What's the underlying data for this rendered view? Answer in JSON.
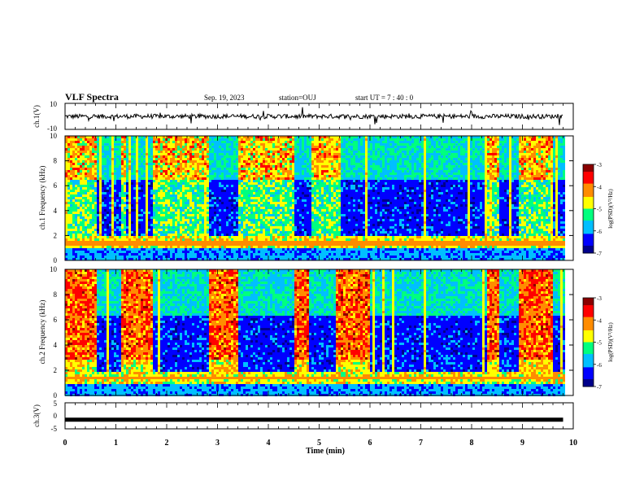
{
  "header": {
    "title": "VLF Spectra",
    "date": "Sep. 19, 2023",
    "station": "station=OUJ",
    "start_ut": "start UT =   7 : 40 : 0"
  },
  "colorbar": {
    "label": "log(PSD)(V²/Hz)",
    "ticks": [
      "-3",
      "-4",
      "-5",
      "-6",
      "-7"
    ],
    "colors": [
      "#8b0000",
      "#ff0000",
      "#ff8c00",
      "#ffff00",
      "#00ff7f",
      "#00bfff",
      "#0000ff",
      "#00008b"
    ]
  },
  "chart_data": [
    {
      "type": "line",
      "panel": "ch.1(V)",
      "ylabel": "ch.1(V)",
      "ylim": [
        -10,
        10
      ],
      "yticks": [
        "10",
        "-10"
      ],
      "description_series": "waveform",
      "baseline": 0
    },
    {
      "type": "heatmap",
      "panel": "ch.1 spectrogram",
      "ylabel": "ch.1 Frequency (kHz)",
      "ylim": [
        0,
        10
      ],
      "yticks": [
        "0",
        "2",
        "4",
        "6",
        "8",
        "10"
      ],
      "xlim": [
        0,
        10
      ],
      "zlim": [
        -7,
        -3
      ],
      "quiet_intervals_min": [
        [
          0.6,
          1.1
        ],
        [
          1.2,
          1.7
        ],
        [
          2.8,
          3.4
        ],
        [
          4.5,
          4.8
        ],
        [
          5.4,
          6.0
        ],
        [
          6.0,
          8.3
        ],
        [
          8.5,
          8.9
        ],
        [
          9.6,
          9.8
        ]
      ]
    },
    {
      "type": "heatmap",
      "panel": "ch.2 spectrogram",
      "ylabel": "ch.2 Frequency (kHz)",
      "ylim": [
        0,
        10
      ],
      "yticks": [
        "0",
        "2",
        "4",
        "6",
        "8",
        "10"
      ],
      "xlim": [
        0,
        10
      ],
      "zlim": [
        -7,
        -3
      ],
      "quiet_intervals_min": [
        [
          0.6,
          1.1
        ],
        [
          1.7,
          2.8
        ],
        [
          3.4,
          4.5
        ],
        [
          4.8,
          5.3
        ],
        [
          6.0,
          8.3
        ],
        [
          8.5,
          8.9
        ],
        [
          9.6,
          9.8
        ]
      ]
    },
    {
      "type": "line",
      "panel": "ch.3(V)",
      "ylabel": "ch.3(V)",
      "ylim": [
        -5,
        5
      ],
      "yticks": [
        "5",
        "0",
        "-5"
      ],
      "baseline": -1.5
    }
  ],
  "xaxis": {
    "label": "Time (min)",
    "ticks": [
      "0",
      "1",
      "2",
      "3",
      "4",
      "5",
      "6",
      "7",
      "8",
      "9",
      "10"
    ],
    "range": [
      0,
      10
    ],
    "data_end": 9.8
  }
}
